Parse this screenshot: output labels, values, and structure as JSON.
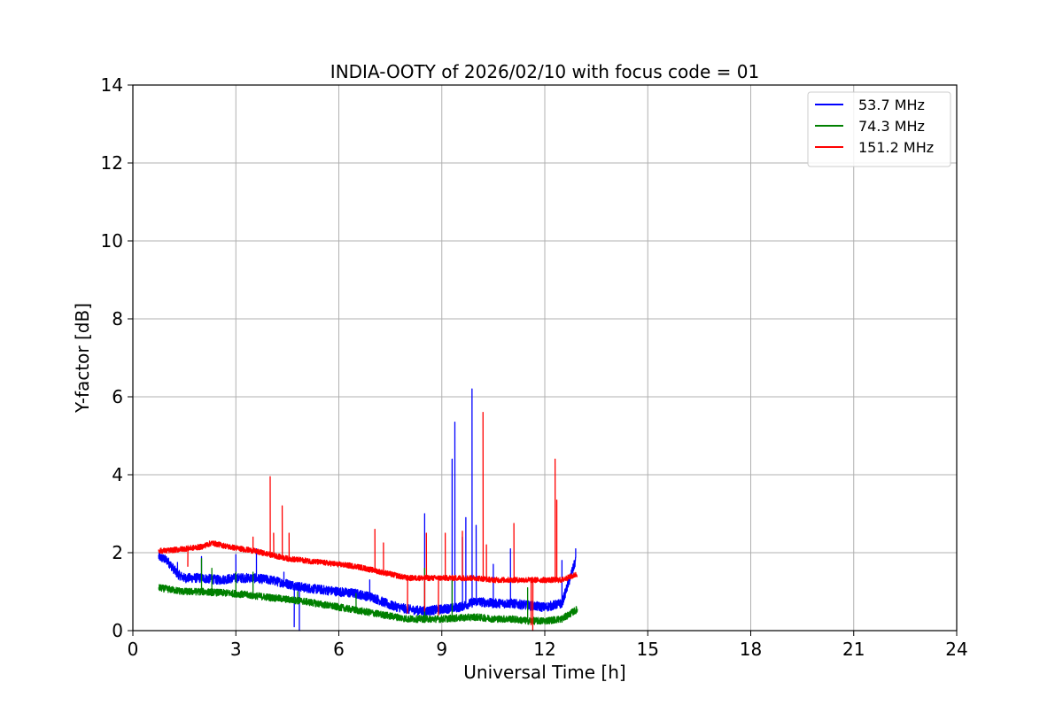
{
  "chart_data": {
    "type": "line",
    "title": "INDIA-OOTY of 2026/02/10 with focus code = 01",
    "xlabel": "Universal Time [h]",
    "ylabel": "Y-factor [dB]",
    "xlim": [
      0,
      24
    ],
    "ylim": [
      0,
      14
    ],
    "xticks": [
      0,
      3,
      6,
      9,
      12,
      15,
      18,
      21,
      24
    ],
    "yticks": [
      0,
      2,
      4,
      6,
      8,
      10,
      12,
      14
    ],
    "grid": true,
    "legend_position": "top-right",
    "series": [
      {
        "name": " 53.7 MHz",
        "color": "#0000ff",
        "noise": 0.12,
        "x": [
          0.75,
          1.0,
          1.3,
          1.5,
          2.0,
          2.5,
          3.0,
          3.5,
          4.0,
          4.5,
          5.0,
          5.5,
          6.0,
          6.5,
          7.0,
          7.5,
          8.0,
          8.5,
          9.0,
          9.5,
          10.0,
          10.5,
          11.0,
          11.5,
          12.0,
          12.5,
          12.9
        ],
        "y": [
          1.9,
          1.8,
          1.45,
          1.35,
          1.35,
          1.3,
          1.35,
          1.35,
          1.3,
          1.2,
          1.1,
          1.05,
          1.0,
          0.95,
          0.85,
          0.65,
          0.55,
          0.5,
          0.55,
          0.6,
          0.75,
          0.7,
          0.7,
          0.65,
          0.6,
          0.7,
          1.8
        ],
        "spikes": [
          [
            1.3,
            1.75
          ],
          [
            2.0,
            1.9
          ],
          [
            3.0,
            1.95
          ],
          [
            3.6,
            2.1
          ],
          [
            4.4,
            1.5
          ],
          [
            4.7,
            0.1
          ],
          [
            4.85,
            0.0
          ],
          [
            6.9,
            1.3
          ],
          [
            8.5,
            3.0
          ],
          [
            9.3,
            4.4
          ],
          [
            9.38,
            5.35
          ],
          [
            9.6,
            2.4
          ],
          [
            9.7,
            2.9
          ],
          [
            9.88,
            6.2
          ],
          [
            10.0,
            2.7
          ],
          [
            10.5,
            1.7
          ],
          [
            11.0,
            2.1
          ],
          [
            12.5,
            1.8
          ],
          [
            12.9,
            2.1
          ]
        ]
      },
      {
        "name": " 74.3 MHz",
        "color": "#008000",
        "noise": 0.09,
        "x": [
          0.75,
          1.5,
          2.0,
          3.0,
          4.0,
          5.0,
          6.0,
          7.0,
          8.0,
          9.0,
          10.0,
          10.5,
          11.0,
          11.5,
          12.0,
          12.5,
          12.95
        ],
        "y": [
          1.1,
          1.0,
          1.0,
          0.95,
          0.85,
          0.75,
          0.6,
          0.45,
          0.3,
          0.3,
          0.35,
          0.3,
          0.3,
          0.25,
          0.25,
          0.3,
          0.55
        ],
        "spikes": [
          [
            2.0,
            1.85
          ],
          [
            2.3,
            1.6
          ],
          [
            3.0,
            1.5
          ],
          [
            3.5,
            1.5
          ],
          [
            4.8,
            1.0
          ],
          [
            6.5,
            0.95
          ],
          [
            8.5,
            1.6
          ],
          [
            9.3,
            1.3
          ],
          [
            11.5,
            1.1
          ]
        ]
      },
      {
        "name": "151.2 MHz",
        "color": "#ff0000",
        "noise": 0.07,
        "x": [
          0.75,
          1.0,
          1.5,
          2.0,
          2.3,
          2.8,
          3.5,
          4.0,
          4.5,
          5.0,
          5.5,
          6.0,
          6.5,
          7.0,
          7.5,
          8.0,
          9.0,
          9.5,
          10.0,
          10.5,
          11.0,
          11.5,
          12.0,
          12.5,
          12.95
        ],
        "y": [
          2.05,
          2.05,
          2.1,
          2.15,
          2.25,
          2.15,
          2.05,
          1.95,
          1.85,
          1.8,
          1.75,
          1.7,
          1.65,
          1.55,
          1.45,
          1.35,
          1.35,
          1.35,
          1.35,
          1.3,
          1.3,
          1.3,
          1.3,
          1.3,
          1.45
        ],
        "spikes": [
          [
            1.6,
            1.65
          ],
          [
            3.5,
            2.4
          ],
          [
            4.0,
            3.95
          ],
          [
            4.1,
            2.5
          ],
          [
            4.35,
            3.2
          ],
          [
            4.55,
            2.5
          ],
          [
            7.05,
            2.6
          ],
          [
            7.3,
            2.25
          ],
          [
            8.0,
            0.45
          ],
          [
            8.5,
            0.5
          ],
          [
            8.55,
            2.5
          ],
          [
            8.9,
            0.4
          ],
          [
            9.1,
            2.5
          ],
          [
            9.6,
            2.55
          ],
          [
            10.2,
            5.6
          ],
          [
            10.3,
            2.2
          ],
          [
            11.1,
            2.75
          ],
          [
            11.6,
            0.15
          ],
          [
            11.65,
            0.0
          ],
          [
            12.3,
            4.4
          ],
          [
            12.35,
            3.35
          ]
        ]
      }
    ]
  }
}
